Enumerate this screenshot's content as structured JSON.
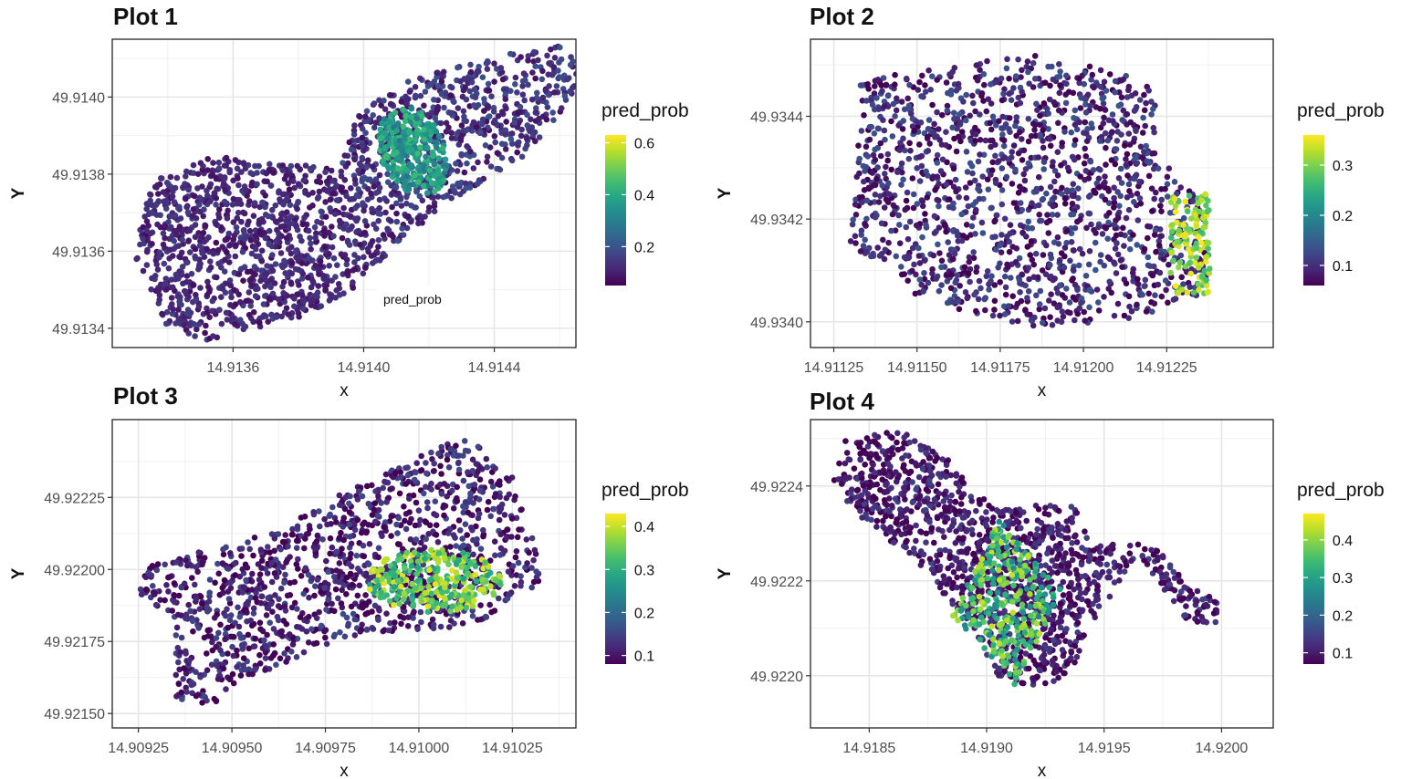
{
  "chart_data": [
    {
      "type": "scatter",
      "title": "Plot 1",
      "xlabel": "x",
      "ylabel": "Y",
      "xlim": [
        14.91323,
        14.91465
      ],
      "ylim": [
        49.91335,
        49.91415
      ],
      "xticks": [
        14.9136,
        14.914,
        14.9144
      ],
      "xtick_labels": [
        "14.9136",
        "14.9140",
        "14.9144"
      ],
      "yticks": [
        49.9134,
        49.9136,
        49.9138,
        49.914
      ],
      "ytick_labels": [
        "49.9134",
        "49.9136",
        "49.9138",
        "49.9140"
      ],
      "grid": true,
      "legend": {
        "title": "pred_prob",
        "position": "right",
        "range": [
          0.05,
          0.63
        ],
        "ticks": [
          0.2,
          0.4,
          0.6
        ],
        "tick_labels": [
          "0.2",
          "0.4",
          "0.6"
        ]
      },
      "annotation": "pred_prob",
      "regions": [
        {
          "shape": "polygon",
          "points": [
            [
              14.91335,
              49.91378
            ],
            [
              14.91355,
              49.91385
            ],
            [
              14.91368,
              49.91383
            ],
            [
              14.9139,
              49.91382
            ],
            [
              14.91398,
              49.91377
            ],
            [
              14.91404,
              49.91369
            ],
            [
              14.9141,
              49.91362
            ],
            [
              14.91405,
              49.91356
            ],
            [
              14.91395,
              49.91349
            ],
            [
              14.91382,
              49.91343
            ],
            [
              14.91368,
              49.9134
            ],
            [
              14.91352,
              49.91337
            ],
            [
              14.9134,
              49.9134
            ],
            [
              14.91336,
              49.91348
            ],
            [
              14.9133,
              49.91358
            ],
            [
              14.91332,
              49.91368
            ]
          ],
          "count": 1100,
          "value": [
            0.07,
            0.16
          ]
        },
        {
          "shape": "polygon",
          "points": [
            [
              14.91392,
              49.9138
            ],
            [
              14.91398,
              49.91395
            ],
            [
              14.91412,
              49.91404
            ],
            [
              14.9143,
              49.91408
            ],
            [
              14.91448,
              49.91412
            ],
            [
              14.91462,
              49.91414
            ],
            [
              14.91467,
              49.9141
            ],
            [
              14.91463,
              49.91398
            ],
            [
              14.9145,
              49.91385
            ],
            [
              14.9143,
              49.91375
            ],
            [
              14.9141,
              49.91362
            ],
            [
              14.91404,
              49.91369
            ]
          ],
          "count": 700,
          "value": [
            0.07,
            0.2
          ]
        },
        {
          "shape": "ellipse",
          "center": [
            14.91415,
            49.91386
          ],
          "radii": [
            0.00012,
            0.00011
          ],
          "angle": -28,
          "count": 320,
          "value": [
            0.27,
            0.45
          ]
        }
      ]
    },
    {
      "type": "scatter",
      "title": "Plot 2",
      "xlabel": "x",
      "ylabel": "Y",
      "xlim": [
        14.91118,
        14.91257
      ],
      "ylim": [
        49.93395,
        49.93455
      ],
      "xticks": [
        14.91125,
        14.9115,
        14.91175,
        14.912,
        14.91225
      ],
      "xtick_labels": [
        "14.91125",
        "14.91150",
        "14.91175",
        "14.91200",
        "14.91225"
      ],
      "yticks": [
        49.934,
        49.9342,
        49.9344
      ],
      "ytick_labels": [
        "49.9340",
        "49.9342",
        "49.9344"
      ],
      "grid": true,
      "legend": {
        "title": "pred_prob",
        "position": "right",
        "range": [
          0.06,
          0.36
        ],
        "ticks": [
          0.1,
          0.2,
          0.3
        ],
        "tick_labels": [
          "0.1",
          "0.2",
          "0.3"
        ]
      },
      "regions": [
        {
          "shape": "polygon",
          "points": [
            [
              14.91133,
              49.93448
            ],
            [
              14.9116,
              49.9345
            ],
            [
              14.91185,
              49.93452
            ],
            [
              14.91215,
              49.93448
            ],
            [
              14.91222,
              49.93445
            ],
            [
              14.91222,
              49.93432
            ],
            [
              14.9123,
              49.93428
            ],
            [
              14.91237,
              49.93422
            ],
            [
              14.91237,
              49.93405
            ],
            [
              14.9121,
              49.934
            ],
            [
              14.9118,
              49.93399
            ],
            [
              14.9115,
              49.93405
            ],
            [
              14.91137,
              49.93412
            ],
            [
              14.9113,
              49.93415
            ],
            [
              14.91132,
              49.9343
            ]
          ],
          "count": 1500,
          "value": [
            0.05,
            0.14
          ]
        },
        {
          "shape": "rect",
          "x": [
            14.91226,
            14.91238
          ],
          "y": [
            49.93405,
            49.93425
          ],
          "count": 130,
          "value": [
            0.26,
            0.36
          ]
        }
      ]
    },
    {
      "type": "scatter",
      "title": "Plot 3",
      "xlabel": "x",
      "ylabel": "Y",
      "xlim": [
        14.90918,
        14.91042
      ],
      "ylim": [
        49.92145,
        49.92252
      ],
      "xticks": [
        14.90925,
        14.9095,
        14.90975,
        14.91,
        14.91025
      ],
      "xtick_labels": [
        "14.90925",
        "14.90950",
        "14.90975",
        "14.91000",
        "14.91025"
      ],
      "yticks": [
        49.9215,
        49.92175,
        49.922,
        49.92225
      ],
      "ytick_labels": [
        "49.92150",
        "49.92175",
        "49.92200",
        "49.92225"
      ],
      "grid": true,
      "legend": {
        "title": "pred_prob",
        "position": "right",
        "range": [
          0.08,
          0.43
        ],
        "ticks": [
          0.1,
          0.2,
          0.3,
          0.4
        ],
        "tick_labels": [
          "0.1",
          "0.2",
          "0.3",
          "0.4"
        ]
      },
      "regions": [
        {
          "shape": "polygon",
          "points": [
            [
              14.90925,
              49.922
            ],
            [
              14.9096,
              49.92213
            ],
            [
              14.90985,
              49.9223
            ],
            [
              14.9101,
              49.92245
            ],
            [
              14.91014,
              49.92245
            ],
            [
              14.91025,
              49.92232
            ],
            [
              14.91032,
              49.92205
            ],
            [
              14.91032,
              49.92195
            ],
            [
              14.91015,
              49.9218
            ],
            [
              14.90985,
              49.92178
            ],
            [
              14.90972,
              49.92172
            ],
            [
              14.9095,
              49.9216
            ],
            [
              14.90945,
              49.92153
            ],
            [
              14.90935,
              49.92155
            ],
            [
              14.90935,
              49.92182
            ],
            [
              14.90925,
              49.92192
            ]
          ],
          "count": 1300,
          "value": [
            0.06,
            0.16
          ]
        },
        {
          "shape": "ellipse",
          "center": [
            14.91004,
            49.92196
          ],
          "radii": [
            0.00018,
            0.00011
          ],
          "angle": 0,
          "count": 280,
          "value": [
            0.28,
            0.42
          ]
        }
      ]
    },
    {
      "type": "scatter",
      "title": "Plot 4",
      "xlabel": "x",
      "ylabel": "Y",
      "xlim": [
        14.91825,
        14.92022
      ],
      "ylim": [
        49.92189,
        49.92254
      ],
      "xticks": [
        14.9185,
        14.919,
        14.9195,
        14.92
      ],
      "xtick_labels": [
        "14.9185",
        "14.9190",
        "14.9195",
        "14.9200"
      ],
      "yticks": [
        49.922,
        49.9222,
        49.9224
      ],
      "ytick_labels": [
        "49.9220",
        "49.9222",
        "49.9224"
      ],
      "grid": true,
      "legend": {
        "title": "pred_prob",
        "position": "right",
        "range": [
          0.07,
          0.47
        ],
        "ticks": [
          0.1,
          0.2,
          0.3,
          0.4
        ],
        "tick_labels": [
          "0.1",
          "0.2",
          "0.3",
          "0.4"
        ]
      },
      "regions": [
        {
          "shape": "polygon",
          "points": [
            [
              14.91834,
              49.92242
            ],
            [
              14.9184,
              49.9225
            ],
            [
              14.91862,
              49.92252
            ],
            [
              14.91885,
              49.92245
            ],
            [
              14.91895,
              49.92238
            ],
            [
              14.9191,
              49.92235
            ],
            [
              14.91935,
              49.92238
            ],
            [
              14.91945,
              49.92228
            ],
            [
              14.9197,
              49.92228
            ],
            [
              14.91985,
              49.9222
            ],
            [
              14.92,
              49.92215
            ],
            [
              14.91999,
              49.9221
            ],
            [
              14.91985,
              49.92212
            ],
            [
              14.91965,
              49.92225
            ],
            [
              14.9195,
              49.92215
            ],
            [
              14.9194,
              49.92205
            ],
            [
              14.91935,
              49.922
            ],
            [
              14.9192,
              49.92197
            ],
            [
              14.91905,
              49.922
            ],
            [
              14.91895,
              49.92208
            ],
            [
              14.91875,
              49.92222
            ],
            [
              14.91855,
              49.9223
            ],
            [
              14.9184,
              49.92236
            ]
          ],
          "count": 1300,
          "value": [
            0.05,
            0.15
          ]
        },
        {
          "shape": "polygon",
          "points": [
            [
              14.91885,
              49.92213
            ],
            [
              14.91905,
              49.92233
            ],
            [
              14.91932,
              49.92218
            ],
            [
              14.91912,
              49.92198
            ]
          ],
          "count": 320,
          "value": [
            0.25,
            0.44
          ]
        }
      ]
    }
  ]
}
